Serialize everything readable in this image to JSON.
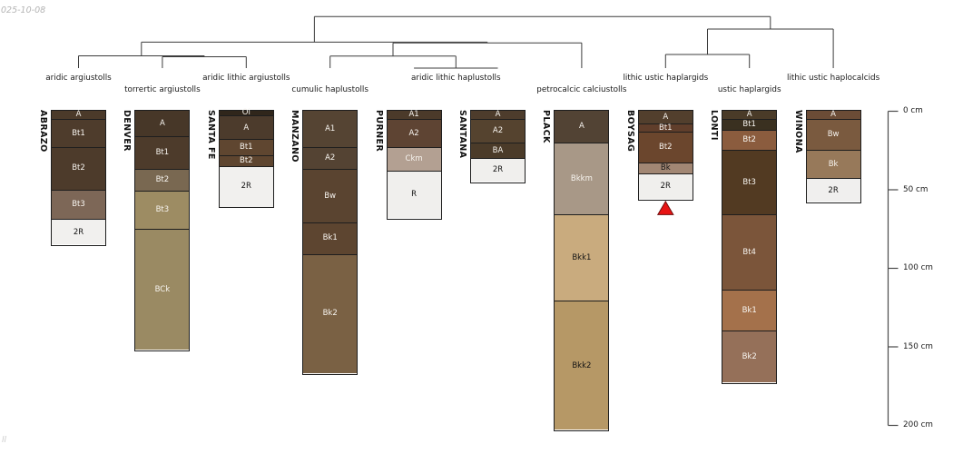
{
  "figure": {
    "timestamp": "025-10-08",
    "watermark": "ll"
  },
  "chart_data": {
    "type": "soil-profile-dendrogram",
    "depth_axis": {
      "unit": "cm",
      "ticks": [
        0,
        50,
        100,
        150,
        200
      ],
      "tick_labels": [
        "0 cm",
        "50 cm",
        "100 cm",
        "150 cm",
        "200 cm"
      ]
    },
    "groups": [
      {
        "label": "aridic argiustolls",
        "leaves": [
          0
        ],
        "row": 1
      },
      {
        "label": "torrertic argiustolls",
        "leaves": [
          1
        ],
        "row": 2
      },
      {
        "label": "aridic lithic argiustolls",
        "leaves": [
          2
        ],
        "row": 1
      },
      {
        "label": "cumulic haplustolls",
        "leaves": [
          3
        ],
        "row": 2
      },
      {
        "label": "aridic lithic haplustolls",
        "leaves": [
          4,
          5
        ],
        "row": 1
      },
      {
        "label": "petrocalcic calciustolls",
        "leaves": [
          6
        ],
        "row": 2
      },
      {
        "label": "lithic ustic haplargids",
        "leaves": [
          7
        ],
        "row": 1
      },
      {
        "label": "ustic haplargids",
        "leaves": [
          8
        ],
        "row": 2
      },
      {
        "label": "lithic ustic haplocalcids",
        "leaves": [
          9
        ],
        "row": 1
      }
    ],
    "profiles": [
      {
        "name": "ABRAZO",
        "group": "aridic argiustolls",
        "horizons": [
          {
            "label": "A",
            "top_cm": 0,
            "bottom_cm": 5,
            "color": "#4b3a2a",
            "text": "light"
          },
          {
            "label": "Bt1",
            "top_cm": 5,
            "bottom_cm": 23,
            "color": "#4e3c2c",
            "text": "light"
          },
          {
            "label": "Bt2",
            "top_cm": 23,
            "bottom_cm": 50,
            "color": "#4d3b2b",
            "text": "light"
          },
          {
            "label": "Bt3",
            "top_cm": 50,
            "bottom_cm": 69,
            "color": "#7d6757",
            "text": "light"
          },
          {
            "label": "2R",
            "top_cm": 69,
            "bottom_cm": 85,
            "color": "#f1f0ee",
            "text": "dark"
          }
        ]
      },
      {
        "name": "DENVER",
        "group": "torrertic argiustolls",
        "horizons": [
          {
            "label": "A",
            "top_cm": 0,
            "bottom_cm": 16,
            "color": "#473728",
            "text": "light"
          },
          {
            "label": "Bt1",
            "top_cm": 16,
            "bottom_cm": 37,
            "color": "#4d3b2b",
            "text": "light"
          },
          {
            "label": "Bt2",
            "top_cm": 37,
            "bottom_cm": 51,
            "color": "#796851",
            "text": "light"
          },
          {
            "label": "Bt3",
            "top_cm": 51,
            "bottom_cm": 75,
            "color": "#9d8c63",
            "text": "light"
          },
          {
            "label": "BCk",
            "top_cm": 75,
            "bottom_cm": 152,
            "color": "#9a8a63",
            "text": "light"
          }
        ]
      },
      {
        "name": "SANTA FE",
        "group": "aridic lithic argiustolls",
        "horizons": [
          {
            "label": "Oi",
            "top_cm": 0,
            "bottom_cm": 3,
            "color": "#30261b",
            "text": "light"
          },
          {
            "label": "A",
            "top_cm": 3,
            "bottom_cm": 18,
            "color": "#4c3b2c",
            "text": "light"
          },
          {
            "label": "Bt1",
            "top_cm": 18,
            "bottom_cm": 28,
            "color": "#5f4630",
            "text": "light"
          },
          {
            "label": "Bt2",
            "top_cm": 28,
            "bottom_cm": 35,
            "color": "#5e452f",
            "text": "light"
          },
          {
            "label": "2R",
            "top_cm": 35,
            "bottom_cm": 61,
            "color": "#f1f0ee",
            "text": "dark"
          }
        ]
      },
      {
        "name": "MANZANO",
        "group": "cumulic haplustolls",
        "horizons": [
          {
            "label": "A1",
            "top_cm": 0,
            "bottom_cm": 23,
            "color": "#554433",
            "text": "light"
          },
          {
            "label": "A2",
            "top_cm": 23,
            "bottom_cm": 37,
            "color": "#544333",
            "text": "light"
          },
          {
            "label": "Bw",
            "top_cm": 37,
            "bottom_cm": 71,
            "color": "#5a4430",
            "text": "light"
          },
          {
            "label": "Bk1",
            "top_cm": 71,
            "bottom_cm": 91,
            "color": "#5d4530",
            "text": "light"
          },
          {
            "label": "Bk2",
            "top_cm": 91,
            "bottom_cm": 167,
            "color": "#7a6144",
            "text": "light"
          }
        ]
      },
      {
        "name": "PURNER",
        "group": "aridic lithic haplustolls",
        "horizons": [
          {
            "label": "A1",
            "top_cm": 0,
            "bottom_cm": 5,
            "color": "#4b3a2a",
            "text": "light"
          },
          {
            "label": "A2",
            "top_cm": 5,
            "bottom_cm": 23,
            "color": "#5e4433",
            "text": "light"
          },
          {
            "label": "Ckm",
            "top_cm": 23,
            "bottom_cm": 38,
            "color": "#b3a092",
            "text": "light"
          },
          {
            "label": "R",
            "top_cm": 38,
            "bottom_cm": 68,
            "color": "#f0efed",
            "text": "dark"
          }
        ]
      },
      {
        "name": "SANTANA",
        "group": "aridic lithic haplustolls",
        "horizons": [
          {
            "label": "A",
            "top_cm": 0,
            "bottom_cm": 5,
            "color": "#4d3c2c",
            "text": "light"
          },
          {
            "label": "A2",
            "top_cm": 5,
            "bottom_cm": 20,
            "color": "#55432f",
            "text": "light"
          },
          {
            "label": "BA",
            "top_cm": 20,
            "bottom_cm": 30,
            "color": "#4b3b29",
            "text": "light"
          },
          {
            "label": "2R",
            "top_cm": 30,
            "bottom_cm": 45,
            "color": "#f0efed",
            "text": "dark"
          }
        ]
      },
      {
        "name": "PLACK",
        "group": "petrocalcic calciustolls",
        "horizons": [
          {
            "label": "A",
            "top_cm": 0,
            "bottom_cm": 20,
            "color": "#524334",
            "text": "light"
          },
          {
            "label": "Bkkm",
            "top_cm": 20,
            "bottom_cm": 66,
            "color": "#a89887",
            "text": "light"
          },
          {
            "label": "Bkk1",
            "top_cm": 66,
            "bottom_cm": 121,
            "color": "#c9ab7e",
            "text": "dark"
          },
          {
            "label": "Bkk2",
            "top_cm": 121,
            "bottom_cm": 203,
            "color": "#b69866",
            "text": "dark"
          }
        ]
      },
      {
        "name": "BOYSAG",
        "group": "lithic ustic haplargids",
        "horizons": [
          {
            "label": "A",
            "top_cm": 0,
            "bottom_cm": 8,
            "color": "#523f2d",
            "text": "light"
          },
          {
            "label": "Bt1",
            "top_cm": 8,
            "bottom_cm": 13,
            "color": "#603e2b",
            "text": "light"
          },
          {
            "label": "Bt2",
            "top_cm": 13,
            "bottom_cm": 33,
            "color": "#6b462d",
            "text": "light"
          },
          {
            "label": "Bk",
            "top_cm": 33,
            "bottom_cm": 40,
            "color": "#a28774",
            "text": "dark"
          },
          {
            "label": "2R",
            "top_cm": 40,
            "bottom_cm": 56,
            "color": "#f0efed",
            "text": "dark"
          }
        ]
      },
      {
        "name": "LONTI",
        "group": "ustic haplargids",
        "horizons": [
          {
            "label": "A",
            "top_cm": 0,
            "bottom_cm": 5,
            "color": "#4a3b28",
            "text": "light"
          },
          {
            "label": "Bt1",
            "top_cm": 5,
            "bottom_cm": 12,
            "color": "#3a3020",
            "text": "light"
          },
          {
            "label": "Bt2",
            "top_cm": 12,
            "bottom_cm": 25,
            "color": "#8b5c3e",
            "text": "light"
          },
          {
            "label": "Bt3",
            "top_cm": 25,
            "bottom_cm": 66,
            "color": "#523a22",
            "text": "light"
          },
          {
            "label": "Bt4",
            "top_cm": 66,
            "bottom_cm": 114,
            "color": "#7b553a",
            "text": "light"
          },
          {
            "label": "Bk1",
            "top_cm": 114,
            "bottom_cm": 140,
            "color": "#a4714b",
            "text": "light"
          },
          {
            "label": "Bk2",
            "top_cm": 140,
            "bottom_cm": 173,
            "color": "#957059",
            "text": "light"
          }
        ]
      },
      {
        "name": "WINONA",
        "group": "lithic ustic haplocalcids",
        "horizons": [
          {
            "label": "A",
            "top_cm": 0,
            "bottom_cm": 5,
            "color": "#6b4c36",
            "text": "light"
          },
          {
            "label": "Bw",
            "top_cm": 5,
            "bottom_cm": 25,
            "color": "#7a5a3f",
            "text": "light"
          },
          {
            "label": "Bk",
            "top_cm": 25,
            "bottom_cm": 43,
            "color": "#97795a",
            "text": "light"
          },
          {
            "label": "2R",
            "top_cm": 43,
            "bottom_cm": 58,
            "color": "#f0efee",
            "text": "dark"
          }
        ]
      }
    ],
    "dendrogram": {
      "line_color": "#3c3c3c",
      "merges": [
        {
          "a": 4,
          "b": 5,
          "y": 75
        },
        {
          "a": 1,
          "b": 2,
          "y": 62.5
        },
        {
          "a": 0,
          "b": 11,
          "y": 61.5
        },
        {
          "a": 3,
          "b": 10,
          "y": 61.8
        },
        {
          "a": 13,
          "b": 6,
          "y": 47.2
        },
        {
          "a": 12,
          "b": 14,
          "y": 46.4
        },
        {
          "a": 7,
          "b": 8,
          "y": 60
        },
        {
          "a": 16,
          "b": 9,
          "y": 32
        },
        {
          "a": 15,
          "b": 17,
          "y": 18.3
        }
      ]
    },
    "marker": {
      "shape": "triangle",
      "color": "#e81414",
      "profile_index": 7
    }
  }
}
